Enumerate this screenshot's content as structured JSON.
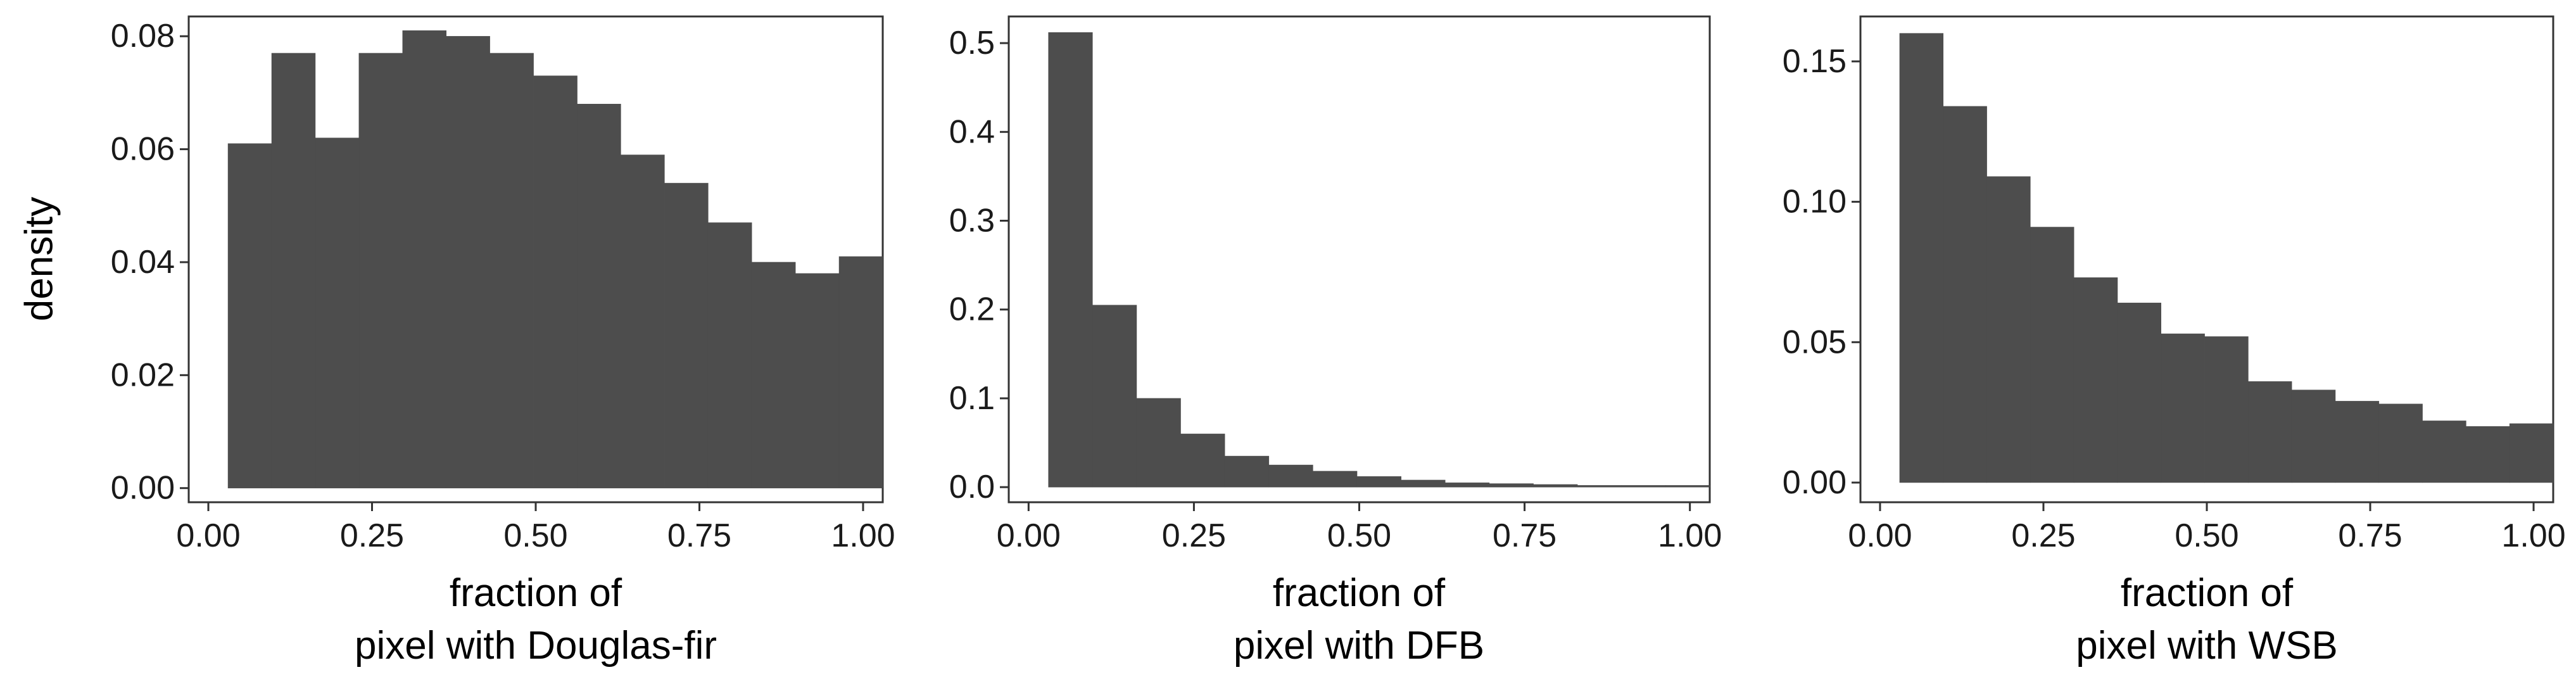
{
  "colors": {
    "bar_fill": "#4d4d4d",
    "panel_border": "#333333",
    "background": "#ffffff"
  },
  "chart_data": [
    {
      "type": "bar",
      "xlabel_lines": [
        "fraction of",
        "pixel with Douglas-fir"
      ],
      "ylabel": "density",
      "grid": false,
      "bin_edges": [
        0.03,
        0.0967,
        0.1633,
        0.23,
        0.2967,
        0.3633,
        0.43,
        0.4967,
        0.5633,
        0.63,
        0.6967,
        0.7633,
        0.83,
        0.8967,
        0.9633
      ],
      "values": [
        0.061,
        0.077,
        0.062,
        0.077,
        0.081,
        0.08,
        0.077,
        0.073,
        0.068,
        0.059,
        0.054,
        0.047,
        0.04,
        0.038,
        0.041
      ],
      "xlim": [
        -0.03,
        1.03
      ],
      "ylim": [
        -0.0025,
        0.0835
      ],
      "xticks": [
        0.0,
        0.25,
        0.5,
        0.75,
        1.0
      ],
      "xtick_labels": [
        "0.00",
        "0.25",
        "0.50",
        "0.75",
        "1.00"
      ],
      "yticks": [
        0.0,
        0.02,
        0.04,
        0.06,
        0.08
      ],
      "ytick_labels": [
        "0.00",
        "0.02",
        "0.04",
        "0.06",
        "0.08"
      ]
    },
    {
      "type": "bar",
      "xlabel_lines": [
        "fraction of",
        "pixel with DFB"
      ],
      "ylabel": "",
      "grid": false,
      "bin_edges": [
        0.03,
        0.0967,
        0.1633,
        0.23,
        0.2967,
        0.3633,
        0.43,
        0.4967,
        0.5633,
        0.63,
        0.6967,
        0.7633,
        0.83,
        0.8967,
        0.9633
      ],
      "values": [
        0.512,
        0.205,
        0.1,
        0.06,
        0.035,
        0.025,
        0.018,
        0.012,
        0.008,
        0.005,
        0.004,
        0.003,
        0.002,
        0.002,
        0.002
      ],
      "xlim": [
        -0.03,
        1.03
      ],
      "ylim": [
        -0.017,
        0.53
      ],
      "xticks": [
        0.0,
        0.25,
        0.5,
        0.75,
        1.0
      ],
      "xtick_labels": [
        "0.00",
        "0.25",
        "0.50",
        "0.75",
        "1.00"
      ],
      "yticks": [
        0.0,
        0.1,
        0.2,
        0.3,
        0.4,
        0.5
      ],
      "ytick_labels": [
        "0.0",
        "0.1",
        "0.2",
        "0.3",
        "0.4",
        "0.5"
      ]
    },
    {
      "type": "bar",
      "xlabel_lines": [
        "fraction of",
        "pixel with WSB"
      ],
      "ylabel": "",
      "grid": false,
      "bin_edges": [
        0.03,
        0.0967,
        0.1633,
        0.23,
        0.2967,
        0.3633,
        0.43,
        0.4967,
        0.5633,
        0.63,
        0.6967,
        0.7633,
        0.83,
        0.8967,
        0.9633
      ],
      "values": [
        0.16,
        0.134,
        0.109,
        0.091,
        0.073,
        0.064,
        0.053,
        0.052,
        0.036,
        0.033,
        0.029,
        0.028,
        0.022,
        0.02,
        0.021
      ],
      "xlim": [
        -0.03,
        1.03
      ],
      "ylim": [
        -0.007,
        0.166
      ],
      "xticks": [
        0.0,
        0.25,
        0.5,
        0.75,
        1.0
      ],
      "xtick_labels": [
        "0.00",
        "0.25",
        "0.50",
        "0.75",
        "1.00"
      ],
      "yticks": [
        0.0,
        0.05,
        0.1,
        0.15
      ],
      "ytick_labels": [
        "0.00",
        "0.05",
        "0.10",
        "0.15"
      ]
    }
  ]
}
